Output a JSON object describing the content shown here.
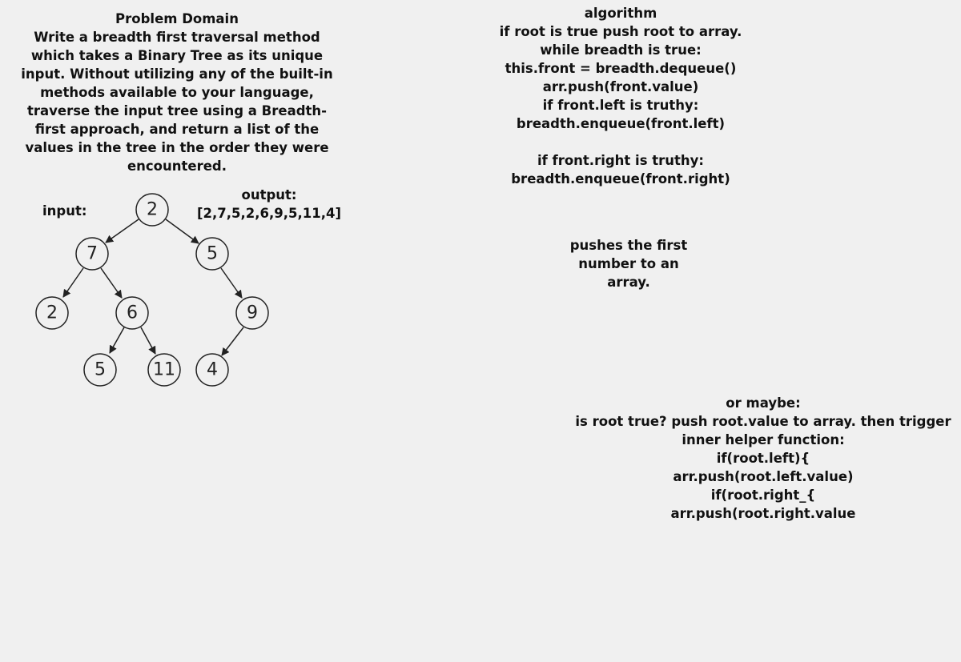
{
  "problem": {
    "lines": [
      "Problem Domain",
      "Write a breadth first traversal method",
      "which takes a Binary Tree as its unique",
      "input. Without utilizing any of the built-in",
      "methods available to your language,",
      "traverse the input tree using a Breadth-",
      "first approach, and return a list of the",
      "values in the tree in the order they were",
      "encountered."
    ]
  },
  "input_label": "input:",
  "output": {
    "label": "output:",
    "value": "[2,7,5,2,6,9,5,11,4]"
  },
  "tree": {
    "nodes": [
      "2",
      "7",
      "5",
      "2",
      "6",
      "9",
      "5",
      "11",
      "4"
    ]
  },
  "algorithm": {
    "lines": [
      "algorithm",
      "if root is true push root to array.",
      "while breadth is true:",
      "this.front = breadth.dequeue()",
      "arr.push(front.value)",
      "if front.left is truthy:",
      "breadth.enqueue(front.left)",
      "",
      "if front.right is truthy:",
      "breadth.enqueue(front.right)"
    ]
  },
  "note": {
    "lines": [
      "pushes the first",
      "number to an",
      "array."
    ]
  },
  "alternative": {
    "lines": [
      "or maybe:",
      "is root true? push root.value to array. then trigger",
      "inner helper function:",
      "if(root.left){",
      "arr.push(root.left.value)",
      "if(root.right_{",
      "arr.push(root.right.value"
    ]
  }
}
